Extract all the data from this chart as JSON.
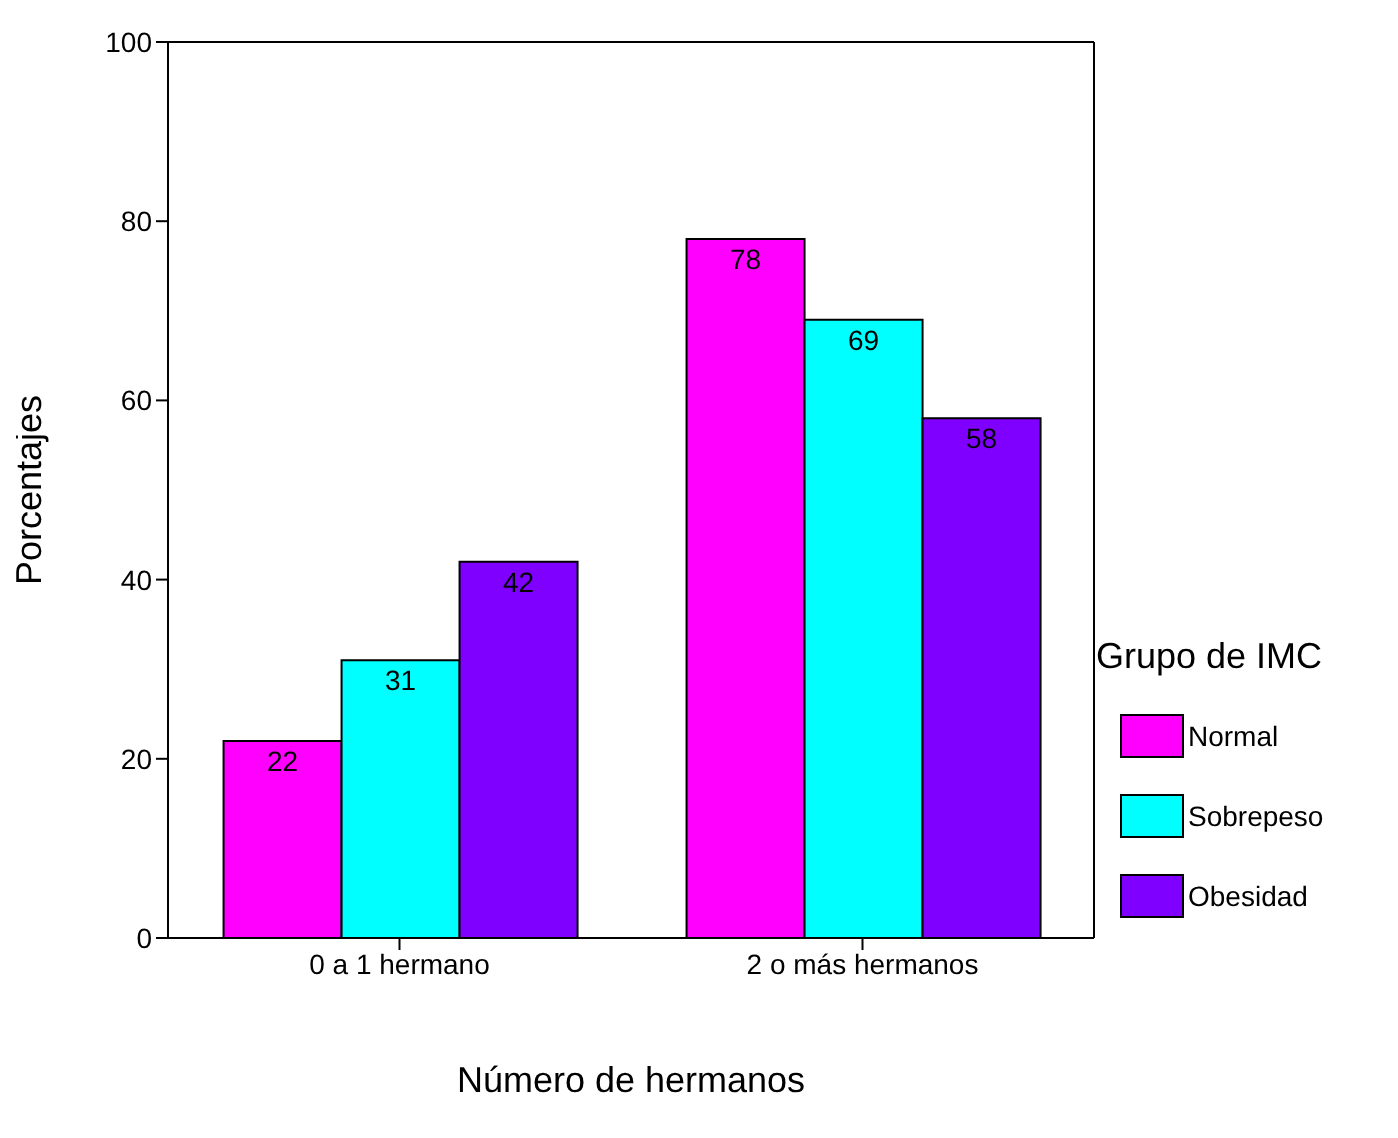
{
  "chart_data": {
    "type": "bar",
    "xlabel": "Número de hermanos",
    "ylabel": "Porcentajes",
    "legend_title": "Grupo de IMC",
    "categories": [
      "0 a 1 hermano",
      "2 o más hermanos"
    ],
    "series": [
      {
        "name": "Normal",
        "color": "#ff00ff",
        "values": [
          22,
          78
        ]
      },
      {
        "name": "Sobrepeso",
        "color": "#00ffff",
        "values": [
          31,
          69
        ]
      },
      {
        "name": "Obesidad",
        "color": "#8000ff",
        "values": [
          42,
          58
        ]
      }
    ],
    "ylim": [
      0,
      100
    ],
    "yticks": [
      0,
      20,
      40,
      60,
      80,
      100
    ],
    "data_labels": true,
    "legend": "right",
    "grid": false
  }
}
